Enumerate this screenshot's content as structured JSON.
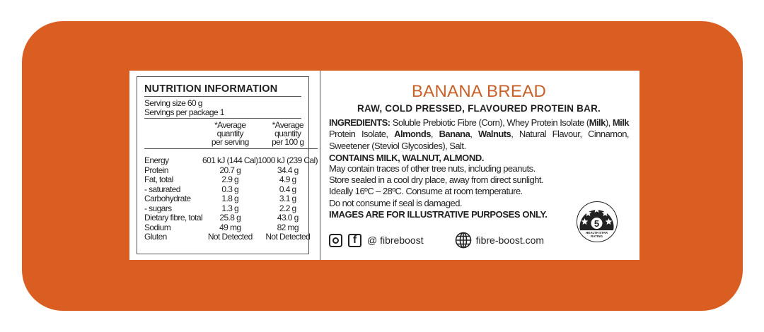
{
  "colors": {
    "background": "#DA5E22",
    "title": "#C8612A",
    "text": "#222222"
  },
  "nutrition": {
    "title": "NUTRITION INFORMATION",
    "serving_size": "Serving size 60 g",
    "servings_per_package": "Servings per package 1",
    "columns": [
      "*Average quantity per serving",
      "*Average quantity per 100 g"
    ],
    "col1_lines": [
      "*Average",
      "quantity",
      "per serving"
    ],
    "col2_lines": [
      "*Average",
      "quantity",
      "per 100 g"
    ],
    "rows": [
      {
        "name": "Energy",
        "per_serving": "601 kJ (144 Cal)",
        "per_100g": "1000 kJ (239 Cal)"
      },
      {
        "name": "Protein",
        "per_serving": "20.7 g",
        "per_100g": "34.4 g"
      },
      {
        "name": "Fat, total",
        "per_serving": "2.9 g",
        "per_100g": "4.9 g"
      },
      {
        "name": "- saturated",
        "per_serving": "0.3 g",
        "per_100g": "0.4 g"
      },
      {
        "name": "Carbohydrate",
        "per_serving": "1.8 g",
        "per_100g": "3.1 g"
      },
      {
        "name": "- sugars",
        "per_serving": "1.3 g",
        "per_100g": "2.2 g"
      },
      {
        "name": "Dietary fibre, total",
        "per_serving": "25.8 g",
        "per_100g": "43.0 g"
      },
      {
        "name": "Sodium",
        "per_serving": "49 mg",
        "per_100g": "82 mg"
      },
      {
        "name": "Gluten",
        "per_serving": "Not Detected",
        "per_100g": "Not Detected"
      }
    ]
  },
  "product": {
    "title": "BANANA BREAD",
    "subtitle": "RAW, COLD PRESSED, FLAVOURED PROTEIN BAR.",
    "ingredients_label": "INGREDIENTS:",
    "ingredients": [
      {
        "t": " Soluble Prebiotic Fibre (Corn), Whey Protein Isolate (",
        "b": false
      },
      {
        "t": "Milk",
        "b": true
      },
      {
        "t": "), ",
        "b": false
      },
      {
        "t": "Milk",
        "b": true
      },
      {
        "t": " Protein Isolate, ",
        "b": false
      },
      {
        "t": "Almonds",
        "b": true
      },
      {
        "t": ", ",
        "b": false
      },
      {
        "t": "Banana",
        "b": true
      },
      {
        "t": ", ",
        "b": false
      },
      {
        "t": "Walnuts",
        "b": true
      },
      {
        "t": ", Natural Flavour, Cinnamon, Sweetener (Steviol Glycosides), Salt.",
        "b": false
      }
    ],
    "contains": "CONTAINS MILK, WALNUT, ALMOND.",
    "notes": [
      "May contain traces of other tree nuts, including peanuts.",
      "Store sealed in a cool dry place, away from direct sunlight.",
      "Ideally 16ºC – 28ºC. Consume at room temperature.",
      "Do not consume if seal is damaged."
    ],
    "disclaimer": "IMAGES ARE FOR ILLUSTRATIVE PURPOSES ONLY.",
    "social_handle": "@ fibreboost",
    "website": "fibre-boost.com",
    "health_star": {
      "rating": "5",
      "label_line1": "HEALTH STAR",
      "label_line2": "RATING",
      "stars": 5
    }
  },
  "icons": [
    "instagram-icon",
    "facebook-icon",
    "globe-icon",
    "health-star-rating-icon"
  ]
}
